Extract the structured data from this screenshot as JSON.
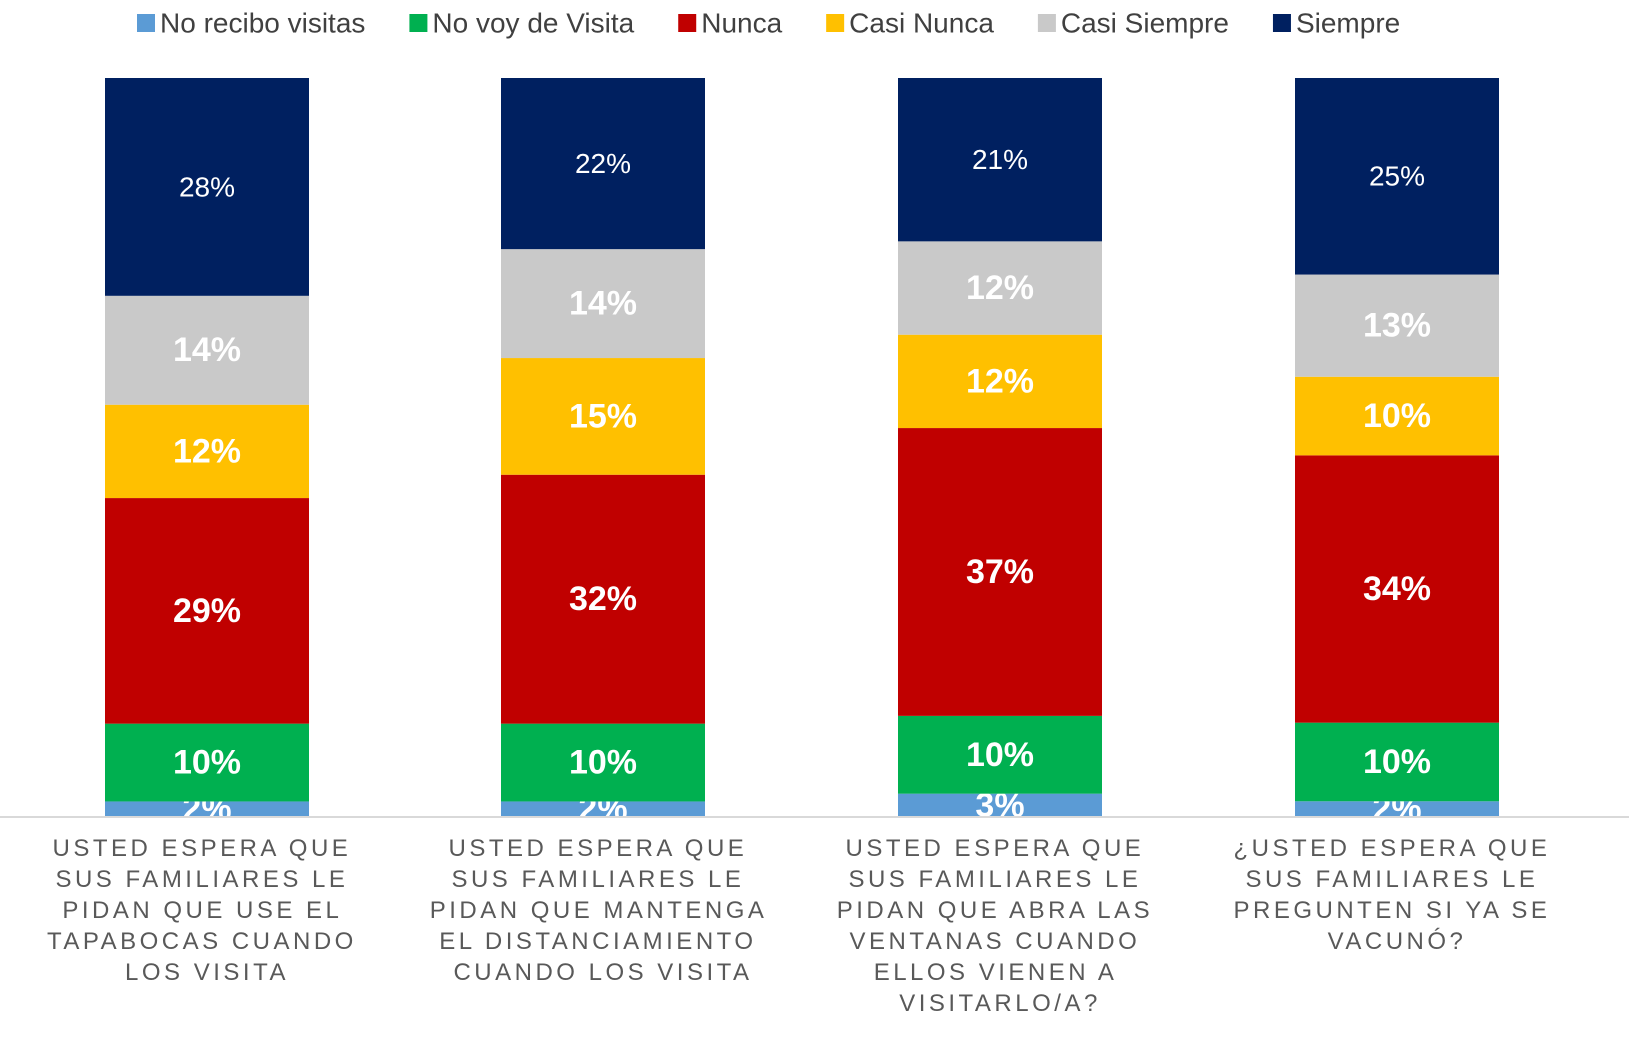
{
  "chart_data": {
    "type": "bar",
    "stack": "percent",
    "categories": [
      "USTED ESPERA QUE SUS FAMILIARES LE PIDAN QUE USE EL TAPABOCAS CUANDO LOS VISITA",
      "USTED ESPERA QUE SUS FAMILIARES LE PIDAN QUE MANTENGA EL DISTANCIAMIENTO CUANDO LOS VISITA",
      "USTED ESPERA QUE SUS FAMILIARES LE PIDAN QUE ABRA LAS VENTANAS CUANDO ELLOS VIENEN A VISITARLO/A?",
      "¿USTED ESPERA QUE SUS FAMILIARES LE PREGUNTEN SI YA SE VACUNÓ?"
    ],
    "series": [
      {
        "name": "No recibo visitas",
        "color": "#5b9bd5",
        "values": [
          2,
          2,
          3,
          2
        ],
        "value_labels": [
          "2%",
          "2%",
          "3%",
          "2%"
        ]
      },
      {
        "name": "No voy de Visita",
        "color": "#00b050",
        "values": [
          10,
          10,
          10,
          10
        ],
        "value_labels": [
          "10%",
          "10%",
          "10%",
          "10%"
        ]
      },
      {
        "name": "Nunca",
        "color": "#c00000",
        "values": [
          29,
          32,
          37,
          34
        ],
        "value_labels": [
          "29%",
          "32%",
          "37%",
          "34%"
        ]
      },
      {
        "name": "Casi Nunca",
        "color": "#ffc000",
        "values": [
          12,
          15,
          12,
          10
        ],
        "value_labels": [
          "12%",
          "15%",
          "12%",
          "10%"
        ]
      },
      {
        "name": "Casi Siempre",
        "color": "#c9c9c9",
        "values": [
          14,
          14,
          12,
          13
        ],
        "value_labels": [
          "14%",
          "14%",
          "12%",
          "13%"
        ]
      },
      {
        "name": "Siempre",
        "color": "#002060",
        "values": [
          28,
          22,
          21,
          25
        ],
        "value_labels": [
          "28%",
          "22%",
          "21%",
          "25%"
        ]
      }
    ],
    "legend": "top"
  }
}
